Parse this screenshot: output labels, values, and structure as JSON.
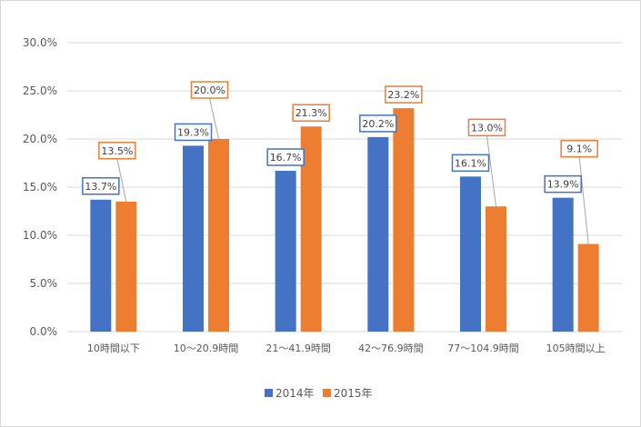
{
  "chart_data": {
    "type": "bar",
    "categories": [
      "10時間以下",
      "10〜20.9時間",
      "21〜41.9時間",
      "42〜76.9時間",
      "77〜104.9時間",
      "105時間以上"
    ],
    "series": [
      {
        "name": "2014年",
        "color": "#4472c4",
        "values": [
          13.7,
          19.3,
          16.7,
          20.2,
          16.1,
          13.9
        ]
      },
      {
        "name": "2015年",
        "color": "#ed7d31",
        "values": [
          13.5,
          20.0,
          21.3,
          23.2,
          13.0,
          9.1
        ]
      }
    ],
    "data_labels": [
      [
        "13.7%",
        "19.3%",
        "16.7%",
        "20.2%",
        "16.1%",
        "13.9%"
      ],
      [
        "13.5%",
        "20.0%",
        "21.3%",
        "23.2%",
        "13.0%",
        "9.1%"
      ]
    ],
    "y_ticks": [
      "0.0%",
      "5.0%",
      "10.0%",
      "15.0%",
      "20.0%",
      "25.0%",
      "30.0%"
    ],
    "ylim": [
      0,
      30
    ],
    "y_format": "percent",
    "grid": true,
    "legend_position": "bottom",
    "title": "",
    "xlabel": "",
    "ylabel": ""
  }
}
